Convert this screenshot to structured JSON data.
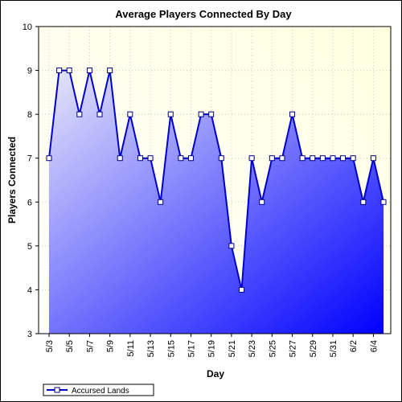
{
  "chart_data": {
    "type": "area",
    "title": "Average Players Connected By Day",
    "xlabel": "Day",
    "ylabel": "Players Connected",
    "ylim": [
      3,
      10
    ],
    "yticks": [
      3,
      4,
      5,
      6,
      7,
      8,
      9,
      10
    ],
    "grid": true,
    "legend_position": "bottom-left",
    "x": [
      "5/3",
      "5/4",
      "5/5",
      "5/6",
      "5/7",
      "5/8",
      "5/9",
      "5/10",
      "5/11",
      "5/12",
      "5/13",
      "5/14",
      "5/15",
      "5/16",
      "5/17",
      "5/18",
      "5/19",
      "5/20",
      "5/21",
      "5/22",
      "5/23",
      "5/24",
      "5/25",
      "5/26",
      "5/27",
      "5/28",
      "5/29",
      "5/30",
      "5/31",
      "6/1",
      "6/2",
      "6/3",
      "6/4",
      "6/5"
    ],
    "x_tick_labels": [
      "5/3",
      "5/5",
      "5/7",
      "5/9",
      "5/11",
      "5/13",
      "5/15",
      "5/17",
      "5/19",
      "5/21",
      "5/23",
      "5/25",
      "5/27",
      "5/29",
      "5/31",
      "6/2",
      "6/4"
    ],
    "series": [
      {
        "name": "Accursed Lands",
        "values": [
          7,
          9,
          9,
          8,
          9,
          8,
          9,
          7,
          8,
          7,
          7,
          6,
          8,
          7,
          7,
          8,
          8,
          7,
          5,
          4,
          7,
          6,
          7,
          7,
          8,
          7,
          7,
          7,
          7,
          7,
          7,
          6,
          7,
          6
        ]
      }
    ],
    "colors": {
      "line": "#0000cc",
      "fill_top": "#e6e6fa",
      "fill_bottom": "#0000ff",
      "plot_background": "#ffffe0",
      "marker_fill": "#ffffff"
    }
  }
}
